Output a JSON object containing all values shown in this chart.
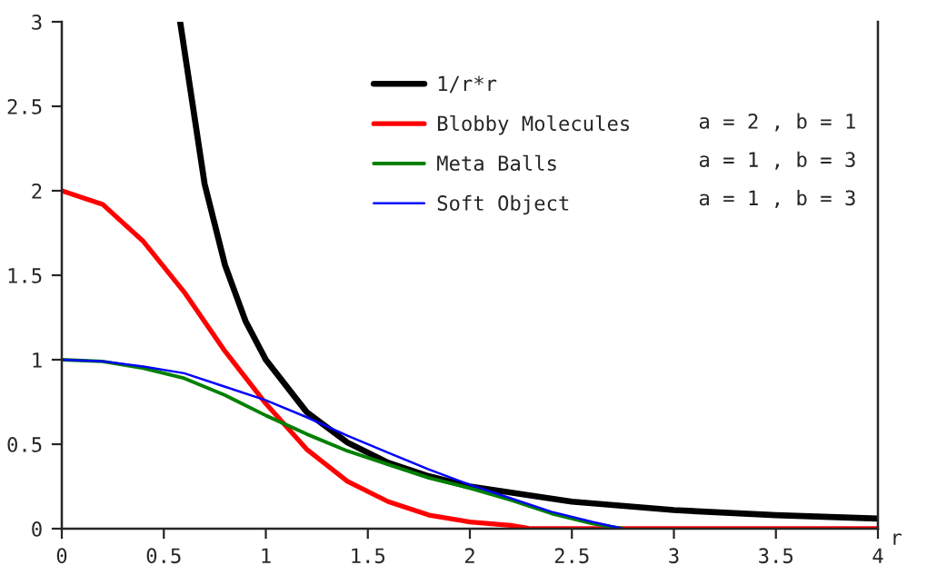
{
  "chart_data": {
    "type": "line",
    "xlabel": "r",
    "xlim": [
      0,
      4
    ],
    "ylim": [
      0,
      3
    ],
    "xticks": [
      0,
      0.5,
      1,
      1.5,
      2,
      2.5,
      3,
      3.5,
      4
    ],
    "yticks": [
      0,
      0.5,
      1,
      1.5,
      2,
      2.5,
      3
    ],
    "grid": false,
    "legend": "top right",
    "marker": "none",
    "line_style": "solid",
    "annotations": [
      "a = 2 , b = 1",
      "a = 1 , b = 3",
      "a = 1 , b = 3"
    ],
    "series": [
      {
        "name": "1/r*r",
        "color": "#000000",
        "x": [
          0.58,
          0.7,
          0.8,
          0.9,
          1,
          1.2,
          1.4,
          1.6,
          1.8,
          2,
          2.5,
          3,
          3.5,
          4
        ],
        "values": [
          3,
          2.04,
          1.56,
          1.23,
          1,
          0.69,
          0.51,
          0.39,
          0.31,
          0.25,
          0.16,
          0.11,
          0.08,
          0.06
        ]
      },
      {
        "name": "Blobby Molecules",
        "color": "#ff0000",
        "x": [
          0,
          0.2,
          0.4,
          0.6,
          0.8,
          1,
          1.2,
          1.4,
          1.6,
          1.8,
          2,
          2.2,
          2.3,
          4
        ],
        "values": [
          2,
          1.92,
          1.7,
          1.4,
          1.05,
          0.74,
          0.47,
          0.28,
          0.16,
          0.08,
          0.04,
          0.02,
          0,
          0
        ]
      },
      {
        "name": "Meta Balls",
        "color": "#008000",
        "x": [
          0,
          0.2,
          0.4,
          0.6,
          0.8,
          1,
          1.2,
          1.4,
          1.6,
          1.8,
          2,
          2.2,
          2.4,
          2.6,
          2.7,
          2.75
        ],
        "values": [
          1,
          0.99,
          0.95,
          0.89,
          0.79,
          0.67,
          0.56,
          0.46,
          0.38,
          0.3,
          0.24,
          0.17,
          0.09,
          0.03,
          0.01,
          0
        ]
      },
      {
        "name": "Soft Object",
        "color": "#0000ff",
        "x": [
          0,
          0.2,
          0.4,
          0.6,
          0.8,
          1,
          1.2,
          1.4,
          1.6,
          1.8,
          2,
          2.2,
          2.4,
          2.6,
          2.75
        ],
        "values": [
          1,
          0.99,
          0.96,
          0.92,
          0.84,
          0.76,
          0.66,
          0.55,
          0.45,
          0.35,
          0.26,
          0.18,
          0.1,
          0.04,
          0
        ]
      }
    ]
  }
}
